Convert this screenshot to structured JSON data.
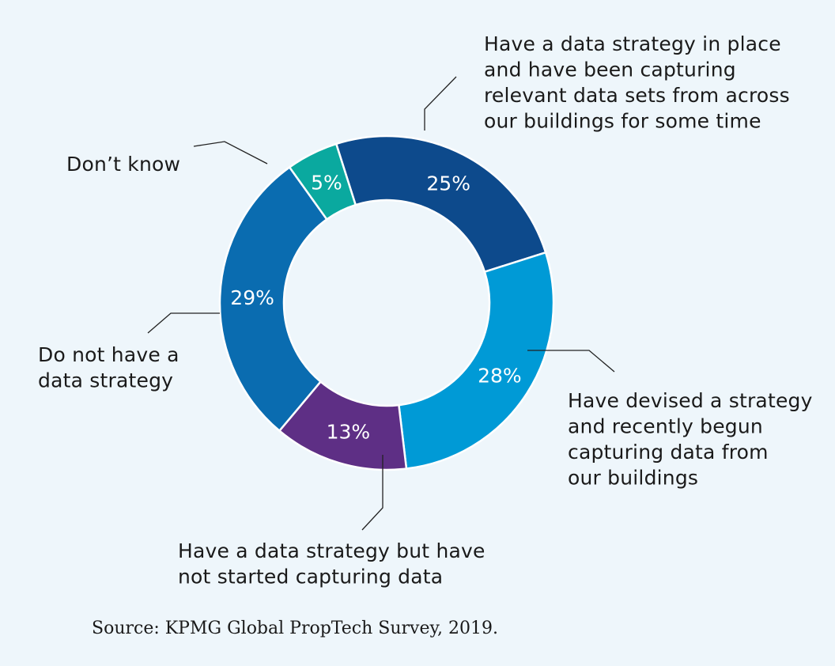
{
  "chart_data": {
    "type": "pie",
    "variant": "donut",
    "title": "",
    "categories": [
      "Have a data strategy in place and have been capturing relevant data sets from across our buildings for some time",
      "Have devised a strategy and recently begun capturing data from our buildings",
      "Have a data strategy but have not started capturing data",
      "Do not have a data strategy",
      "Don’t know"
    ],
    "values": [
      25,
      28,
      13,
      29,
      5
    ],
    "value_labels": [
      "25%",
      "28%",
      "13%",
      "29%",
      "5%"
    ],
    "colors": [
      "#0d4a8c",
      "#009ad6",
      "#5e2f85",
      "#0a6cb0",
      "#0aa99f"
    ],
    "callouts": [
      [
        "Have a data strategy in place",
        "and have been capturing",
        "relevant data sets from across",
        "our buildings for some time"
      ],
      [
        "Have devised a strategy",
        "and recently begun",
        "capturing data from",
        "our buildings"
      ],
      [
        "Have a data strategy but have",
        "not started capturing data"
      ],
      [
        "Do not have a",
        "data strategy"
      ],
      [
        "Don’t know"
      ]
    ],
    "legend": "none"
  },
  "source": "Source: KPMG Global PropTech Survey, 2019."
}
